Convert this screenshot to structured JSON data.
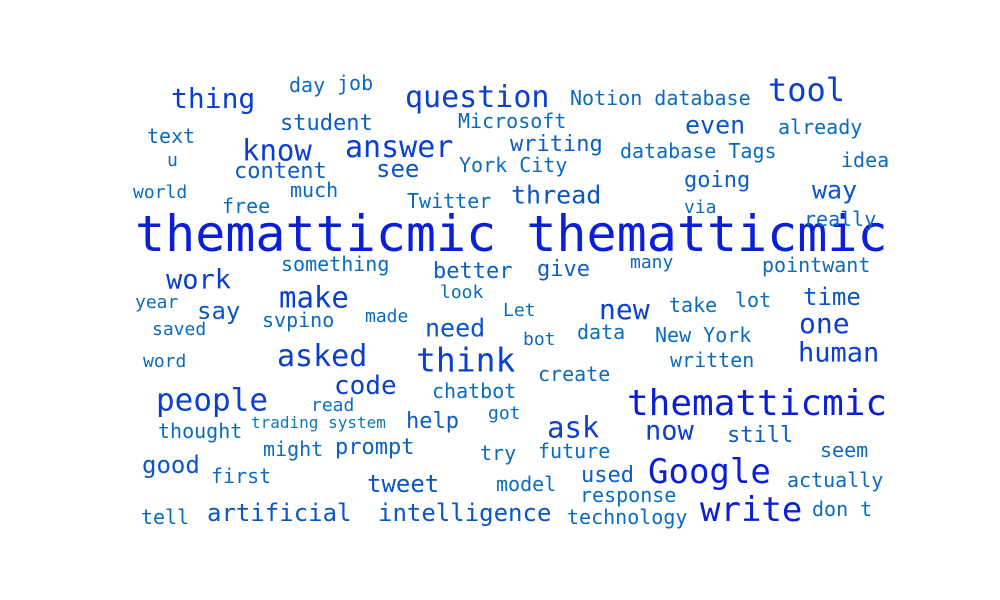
{
  "words": [
    {
      "text": "thematticmic thematticmic",
      "color": "#0a1fd6",
      "weight": 52
    },
    {
      "text": "thematticmic",
      "color": "#0a1fd6",
      "weight": 40
    },
    {
      "text": "Google",
      "color": "#0a1fd6",
      "weight": 36
    },
    {
      "text": "write",
      "color": "#0a1fd6",
      "weight": 36
    },
    {
      "text": "think",
      "color": "#0b3fd0",
      "weight": 34
    },
    {
      "text": "tool",
      "color": "#0b3fd0",
      "weight": 32
    },
    {
      "text": "question",
      "color": "#0b3fd0",
      "weight": 31
    },
    {
      "text": "people",
      "color": "#0b3fd0",
      "weight": 31
    },
    {
      "text": "answer",
      "color": "#0b3fd0",
      "weight": 30
    },
    {
      "text": "asked",
      "color": "#0b3fd0",
      "weight": 30
    },
    {
      "text": "know",
      "color": "#0b3fd0",
      "weight": 29
    },
    {
      "text": "make",
      "color": "#0b3fd0",
      "weight": 29
    },
    {
      "text": "ask",
      "color": "#0b3fd0",
      "weight": 29
    },
    {
      "text": "thing",
      "color": "#0b3fd0",
      "weight": 28
    },
    {
      "text": "new",
      "color": "#0b3fd0",
      "weight": 28
    },
    {
      "text": "one",
      "color": "#0b3fd0",
      "weight": 28
    },
    {
      "text": "human",
      "color": "#0b3fd0",
      "weight": 27
    },
    {
      "text": "work",
      "color": "#0b3fd0",
      "weight": 27
    },
    {
      "text": "now",
      "color": "#0b3fd0",
      "weight": 27
    },
    {
      "text": "code",
      "color": "#0b3fd0",
      "weight": 26
    },
    {
      "text": "thread",
      "color": "#0b55c8",
      "weight": 25
    },
    {
      "text": "need",
      "color": "#0b55c8",
      "weight": 25
    },
    {
      "text": "way",
      "color": "#0b55c8",
      "weight": 25
    },
    {
      "text": "even",
      "color": "#0b55c8",
      "weight": 25
    },
    {
      "text": "time",
      "color": "#0b55c8",
      "weight": 24
    },
    {
      "text": "good",
      "color": "#0b55c8",
      "weight": 24
    },
    {
      "text": "tweet",
      "color": "#0b55c8",
      "weight": 24
    },
    {
      "text": "intelligence",
      "color": "#0b55c8",
      "weight": 24
    },
    {
      "text": "artificial",
      "color": "#0b55c8",
      "weight": 24
    },
    {
      "text": "see",
      "color": "#0b55c8",
      "weight": 24
    },
    {
      "text": "say",
      "color": "#0b55c8",
      "weight": 24
    },
    {
      "text": "going",
      "color": "#0b5ec4",
      "weight": 22
    },
    {
      "text": "better",
      "color": "#0b5ec4",
      "weight": 22
    },
    {
      "text": "give",
      "color": "#0b5ec4",
      "weight": 22
    },
    {
      "text": "student",
      "color": "#0b5ec4",
      "weight": 22
    },
    {
      "text": "content",
      "color": "#0b5ec4",
      "weight": 22
    },
    {
      "text": "writing",
      "color": "#0b5ec4",
      "weight": 22
    },
    {
      "text": "help",
      "color": "#0b5ec4",
      "weight": 22
    },
    {
      "text": "prompt",
      "color": "#0b5ec4",
      "weight": 22
    },
    {
      "text": "used",
      "color": "#0b5ec4",
      "weight": 22
    },
    {
      "text": "still",
      "color": "#0b5ec4",
      "weight": 22
    },
    {
      "text": "Notion database",
      "color": "#0b6bbd",
      "weight": 20
    },
    {
      "text": "Microsoft",
      "color": "#0b6bbd",
      "weight": 20
    },
    {
      "text": "York City",
      "color": "#0b6bbd",
      "weight": 20
    },
    {
      "text": "database Tags",
      "color": "#0b6bbd",
      "weight": 20
    },
    {
      "text": "Twitter",
      "color": "#0b6bbd",
      "weight": 20
    },
    {
      "text": "New York",
      "color": "#0b6bbd",
      "weight": 20
    },
    {
      "text": "chatbot",
      "color": "#0b6bbd",
      "weight": 20
    },
    {
      "text": "response",
      "color": "#0b6bbd",
      "weight": 20
    },
    {
      "text": "technology",
      "color": "#0b6bbd",
      "weight": 20
    },
    {
      "text": "don t",
      "color": "#0b6bbd",
      "weight": 20
    },
    {
      "text": "actually",
      "color": "#0b6bbd",
      "weight": 20
    },
    {
      "text": "already",
      "color": "#0b6bbd",
      "weight": 20
    },
    {
      "text": "really",
      "color": "#0b6bbd",
      "weight": 20
    },
    {
      "text": "idea",
      "color": "#0b6bbd",
      "weight": 20
    },
    {
      "text": "pointwant",
      "color": "#0b6bbd",
      "weight": 20
    },
    {
      "text": "lot",
      "color": "#0b6bbd",
      "weight": 20
    },
    {
      "text": "take",
      "color": "#0b6bbd",
      "weight": 20
    },
    {
      "text": "data",
      "color": "#0b6bbd",
      "weight": 20
    },
    {
      "text": "written",
      "color": "#0b6bbd",
      "weight": 20
    },
    {
      "text": "create",
      "color": "#0b6bbd",
      "weight": 20
    },
    {
      "text": "future",
      "color": "#0b6bbd",
      "weight": 20
    },
    {
      "text": "try",
      "color": "#0b6bbd",
      "weight": 20
    },
    {
      "text": "model",
      "color": "#0b6bbd",
      "weight": 20
    },
    {
      "text": "seem",
      "color": "#0b6bbd",
      "weight": 20
    },
    {
      "text": "text",
      "color": "#0b6bbd",
      "weight": 20
    },
    {
      "text": "day",
      "color": "#0b6bbd",
      "weight": 20
    },
    {
      "text": "job",
      "color": "#0b6bbd",
      "weight": 20
    },
    {
      "text": "much",
      "color": "#0b6bbd",
      "weight": 20
    },
    {
      "text": "something",
      "color": "#0b6bbd",
      "weight": 20
    },
    {
      "text": "free",
      "color": "#0b6bbd",
      "weight": 20
    },
    {
      "text": "via",
      "color": "#0b6bbd",
      "weight": 18
    },
    {
      "text": "many",
      "color": "#0b6bbd",
      "weight": 18
    },
    {
      "text": "look",
      "color": "#0b6bbd",
      "weight": 18
    },
    {
      "text": "svpino",
      "color": "#0b6bbd",
      "weight": 20
    },
    {
      "text": "made",
      "color": "#0b6bbd",
      "weight": 18
    },
    {
      "text": "Let",
      "color": "#0b6bbd",
      "weight": 18
    },
    {
      "text": "bot",
      "color": "#0b6bbd",
      "weight": 18
    },
    {
      "text": "saved",
      "color": "#0b6bbd",
      "weight": 18
    },
    {
      "text": "year",
      "color": "#0b6bbd",
      "weight": 18
    },
    {
      "text": "world",
      "color": "#0b6bbd",
      "weight": 18
    },
    {
      "text": "u",
      "color": "#0b6bbd",
      "weight": 18
    },
    {
      "text": "word",
      "color": "#0b6bbd",
      "weight": 18
    },
    {
      "text": "read",
      "color": "#0b6bbd",
      "weight": 18
    },
    {
      "text": "got",
      "color": "#0b6bbd",
      "weight": 18
    },
    {
      "text": "thought",
      "color": "#0b6bbd",
      "weight": 20
    },
    {
      "text": "trading system",
      "color": "#0b7ab3",
      "weight": 16
    },
    {
      "text": "might",
      "color": "#0b6bbd",
      "weight": 20
    },
    {
      "text": "first",
      "color": "#0b6bbd",
      "weight": 20
    },
    {
      "text": "tell",
      "color": "#0b6bbd",
      "weight": 20
    }
  ]
}
